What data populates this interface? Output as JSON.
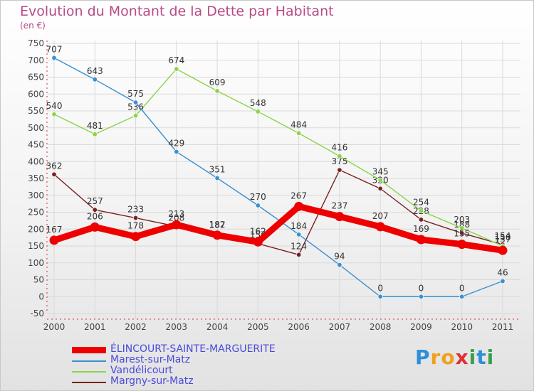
{
  "header": {
    "title": "Evolution du Montant de la Dette par Habitant",
    "subtitle": "(en €)"
  },
  "colors": {
    "title": "#b64a86",
    "legend_text": "#4a4adb",
    "grid": "#d9d9d9"
  },
  "chart_data": {
    "type": "line",
    "title": "Evolution du Montant de la Dette par Habitant",
    "subtitle": "(en €)",
    "xlabel": "",
    "ylabel": "",
    "x": [
      "2000",
      "2001",
      "2002",
      "2003",
      "2004",
      "2005",
      "2006",
      "2007",
      "2008",
      "2009",
      "2010",
      "2011"
    ],
    "ylim": [
      -50,
      750
    ],
    "yticks": [
      "-50",
      "0",
      "50",
      "100",
      "150",
      "200",
      "250",
      "300",
      "350",
      "400",
      "450",
      "500",
      "550",
      "600",
      "650",
      "700",
      "750"
    ],
    "grid": true,
    "legend_position": "bottom-left",
    "series": [
      {
        "name": "Margny-sur-Matz",
        "color": "#7a2020",
        "width": "thin",
        "values": [
          362,
          257,
          233,
          208,
          187,
          157,
          124,
          375,
          320,
          228,
          188,
          154
        ],
        "labels": [
          "362",
          "257",
          "233",
          "208",
          "187",
          "157",
          "124",
          "375",
          "320",
          "228",
          "188",
          "154"
        ]
      },
      {
        "name": "Vandélicourt",
        "color": "#8bd44a",
        "width": "thin",
        "values": [
          540,
          481,
          536,
          674,
          609,
          548,
          484,
          416,
          345,
          254,
          203,
          150
        ],
        "labels": [
          "540",
          "481",
          "536",
          "674",
          "609",
          "548",
          "484",
          "416",
          "345",
          "254",
          "203",
          "150"
        ]
      },
      {
        "name": "Marest-sur-Matz",
        "color": "#3a8fd0",
        "width": "thin",
        "values": [
          707,
          643,
          575,
          429,
          351,
          270,
          184,
          94,
          0,
          0,
          0,
          46
        ],
        "labels": [
          "707",
          "643",
          "575",
          "429",
          "351",
          "270",
          "184",
          "94",
          "0",
          "0",
          "0",
          "46"
        ]
      },
      {
        "name": "ÉLINCOURT-SAINTE-MARGUERITE",
        "color": "#ee0000",
        "width": "thick",
        "values": [
          167,
          206,
          178,
          213,
          182,
          162,
          267,
          237,
          207,
          169,
          155,
          137
        ],
        "labels": [
          "167",
          "206",
          "178",
          "213",
          "182",
          "162",
          "267",
          "237",
          "207",
          "169",
          "155",
          "137"
        ]
      }
    ]
  },
  "legend": {
    "items": [
      {
        "label": "ÉLINCOURT-SAINTE-MARGUERITE",
        "color": "#ee0000"
      },
      {
        "label": "Marest-sur-Matz",
        "color": "#3a8fd0"
      },
      {
        "label": "Vandélicourt",
        "color": "#8bd44a"
      },
      {
        "label": "Margny-sur-Matz",
        "color": "#7a2020"
      }
    ]
  },
  "logo": {
    "letters": [
      "P",
      "r",
      "o",
      "x",
      "i",
      "t",
      "i"
    ],
    "colors": [
      "#2f8fd8",
      "#f0a020",
      "#f0a020",
      "#e03030",
      "#3aa04a",
      "#2f8fd8",
      "#3aa04a"
    ]
  }
}
